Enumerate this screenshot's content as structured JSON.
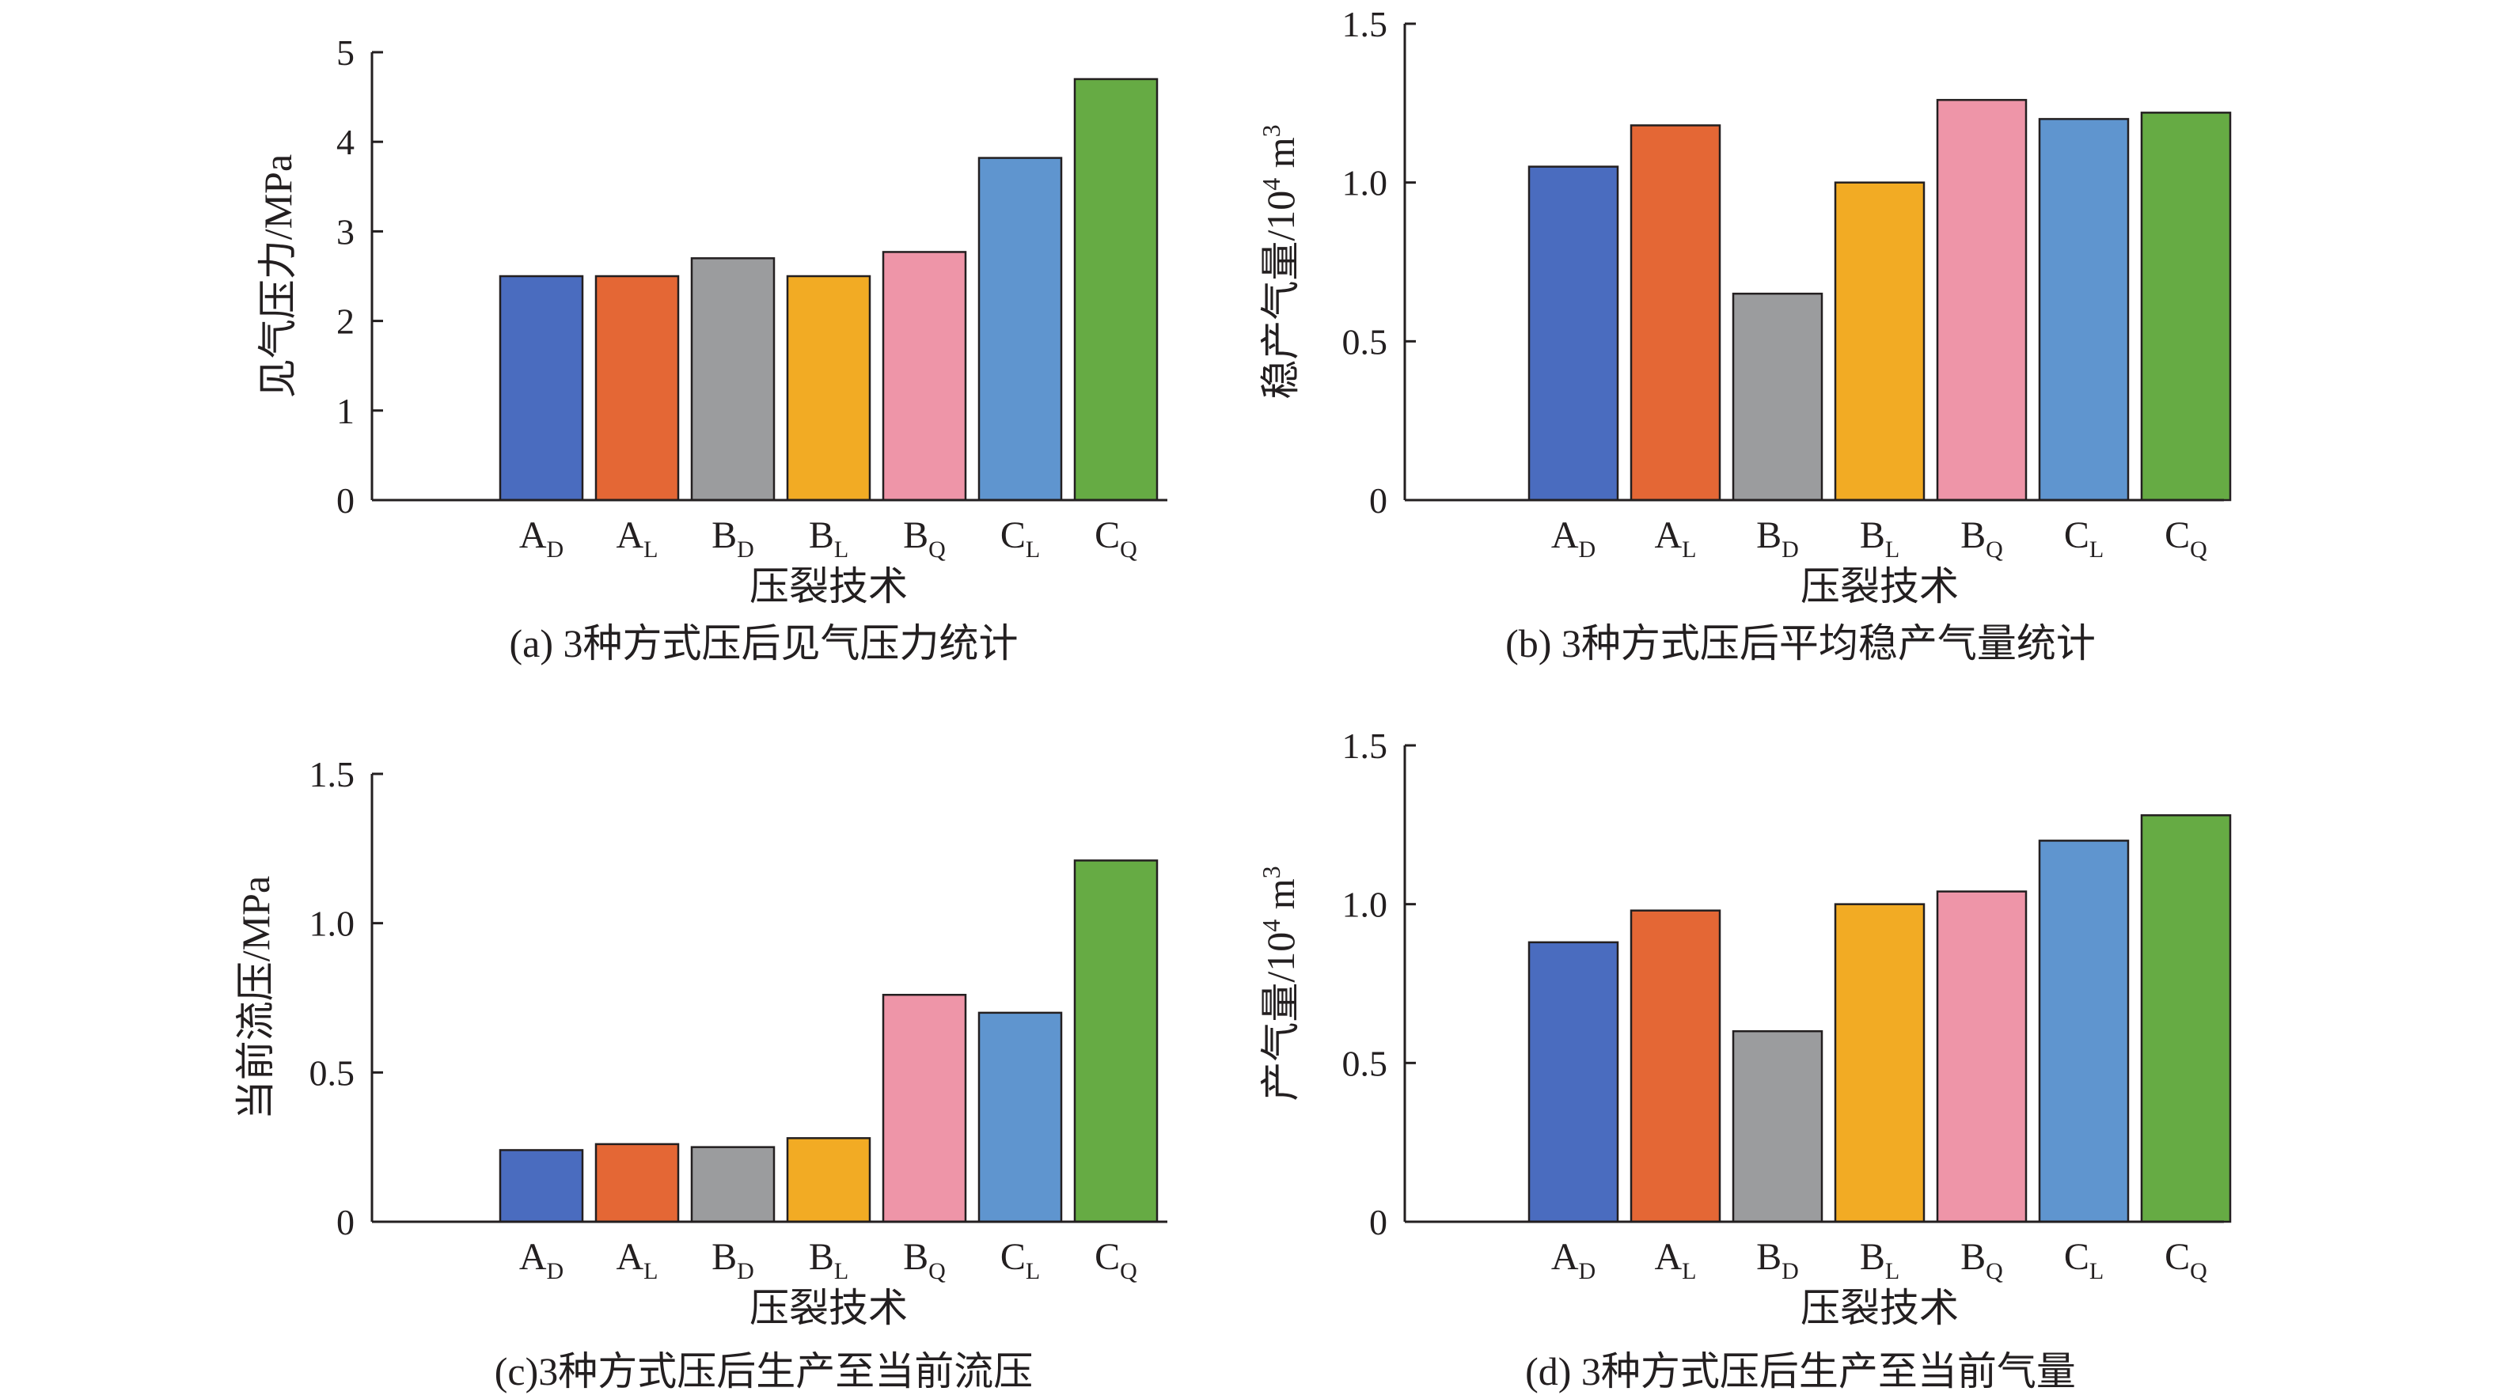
{
  "chart_data": [
    {
      "type": "bar",
      "panel": "a",
      "caption": "(a) 3种方式压后见气压力统计",
      "categories": [
        {
          "base": "A",
          "sub": "D"
        },
        {
          "base": "A",
          "sub": "L"
        },
        {
          "base": "B",
          "sub": "D"
        },
        {
          "base": "B",
          "sub": "L"
        },
        {
          "base": "B",
          "sub": "Q"
        },
        {
          "base": "C",
          "sub": "L"
        },
        {
          "base": "C",
          "sub": "Q"
        }
      ],
      "values": [
        2.5,
        2.5,
        2.7,
        2.5,
        2.77,
        3.82,
        4.7
      ],
      "xlabel": "压裂技术",
      "ylabel": {
        "main": "见气压力/MPa"
      },
      "ylim": [
        0,
        5
      ],
      "yticks": [
        0,
        1,
        2,
        3,
        4,
        5
      ],
      "ytick_labels": [
        "0",
        "1",
        "2",
        "3",
        "4",
        "5"
      ],
      "grid": false
    },
    {
      "type": "bar",
      "panel": "b",
      "caption": "(b) 3种方式压后平均稳产气量统计",
      "categories": [
        {
          "base": "A",
          "sub": "D"
        },
        {
          "base": "A",
          "sub": "L"
        },
        {
          "base": "B",
          "sub": "D"
        },
        {
          "base": "B",
          "sub": "L"
        },
        {
          "base": "B",
          "sub": "Q"
        },
        {
          "base": "C",
          "sub": "L"
        },
        {
          "base": "C",
          "sub": "Q"
        }
      ],
      "values": [
        1.05,
        1.18,
        0.65,
        1.0,
        1.26,
        1.2,
        1.22
      ],
      "xlabel": "压裂技术",
      "ylabel": {
        "main": "稳产气量/10",
        "sup": "4",
        "tail": " m",
        "sup2": "3"
      },
      "ylim": [
        0,
        1.5
      ],
      "yticks": [
        0,
        0.5,
        1.0,
        1.5
      ],
      "ytick_labels": [
        "0",
        "0.5",
        "1.0",
        "1.5"
      ],
      "grid": false
    },
    {
      "type": "bar",
      "panel": "c",
      "caption": "(c)3种方式压后生产至当前流压",
      "categories": [
        {
          "base": "A",
          "sub": "D"
        },
        {
          "base": "A",
          "sub": "L"
        },
        {
          "base": "B",
          "sub": "D"
        },
        {
          "base": "B",
          "sub": "L"
        },
        {
          "base": "B",
          "sub": "Q"
        },
        {
          "base": "C",
          "sub": "L"
        },
        {
          "base": "C",
          "sub": "Q"
        }
      ],
      "values": [
        0.24,
        0.26,
        0.25,
        0.28,
        0.76,
        0.7,
        1.21
      ],
      "xlabel": "压裂技术",
      "ylabel": {
        "main": "当前流压/MPa"
      },
      "ylim": [
        0,
        1.5
      ],
      "yticks": [
        0,
        0.5,
        1.0,
        1.5
      ],
      "ytick_labels": [
        "0",
        "0.5",
        "1.0",
        "1.5"
      ],
      "grid": false
    },
    {
      "type": "bar",
      "panel": "d",
      "caption": "(d) 3种方式压后生产至当前气量",
      "categories": [
        {
          "base": "A",
          "sub": "D"
        },
        {
          "base": "A",
          "sub": "L"
        },
        {
          "base": "B",
          "sub": "D"
        },
        {
          "base": "B",
          "sub": "L"
        },
        {
          "base": "B",
          "sub": "Q"
        },
        {
          "base": "C",
          "sub": "L"
        },
        {
          "base": "C",
          "sub": "Q"
        }
      ],
      "values": [
        0.88,
        0.98,
        0.6,
        1.0,
        1.04,
        1.2,
        1.28
      ],
      "xlabel": "压裂技术",
      "ylabel": {
        "main": "产气量/10",
        "sup": "4",
        "tail": " m",
        "sup2": "3"
      },
      "ylim": [
        0,
        1.5
      ],
      "yticks": [
        0,
        0.5,
        1.0,
        1.5
      ],
      "ytick_labels": [
        "0",
        "0.5",
        "1.0",
        "1.5"
      ],
      "grid": false
    }
  ],
  "colors": {
    "bars": [
      "#4a6cbf",
      "#e46735",
      "#9b9c9e",
      "#f2ab24",
      "#ee95a8",
      "#5f95cf",
      "#66ab44"
    ],
    "axis": "#231f20",
    "bar_outline": "#231f20",
    "text": "#231f20"
  }
}
